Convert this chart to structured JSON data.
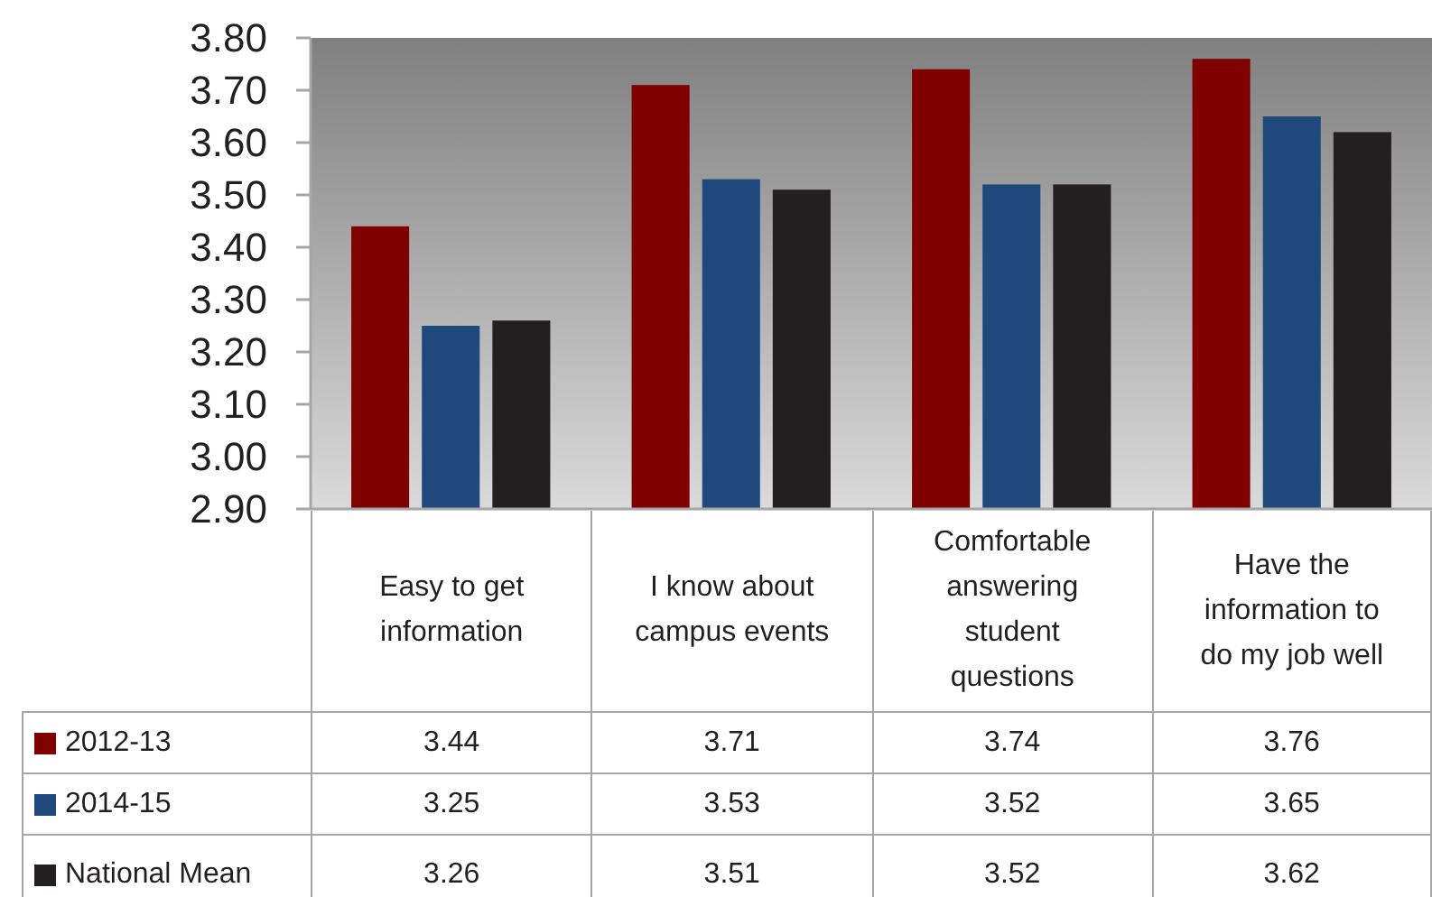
{
  "chart_data": {
    "type": "bar",
    "categories": [
      "Easy to get information",
      "I know about campus events",
      "Comfortable answering student questions",
      "Have the information to do my job well"
    ],
    "series": [
      {
        "name": "2012-13",
        "color": "#800000",
        "values": [
          3.44,
          3.71,
          3.74,
          3.76
        ]
      },
      {
        "name": "2014-15",
        "color": "#1f497d",
        "values": [
          3.25,
          3.53,
          3.52,
          3.65
        ]
      },
      {
        "name": "National Mean",
        "color": "#231f20",
        "values": [
          3.26,
          3.51,
          3.52,
          3.62
        ]
      }
    ],
    "ylim": [
      2.9,
      3.8
    ],
    "yticks": [
      {
        "value": 2.9,
        "label": "2.90"
      },
      {
        "value": 3.0,
        "label": "3.00"
      },
      {
        "value": 3.1,
        "label": "3.10"
      },
      {
        "value": 3.2,
        "label": "3.20"
      },
      {
        "value": 3.3,
        "label": "3.30"
      },
      {
        "value": 3.4,
        "label": "3.40"
      },
      {
        "value": 3.5,
        "label": "3.50"
      },
      {
        "value": 3.6,
        "label": "3.60"
      },
      {
        "value": 3.7,
        "label": "3.70"
      },
      {
        "value": 3.8,
        "label": "3.80"
      }
    ],
    "data_labels": true,
    "legend": "bottom"
  }
}
